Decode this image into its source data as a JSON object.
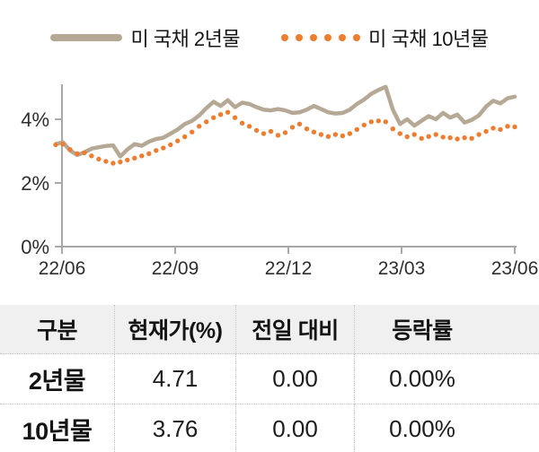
{
  "legend": {
    "items": [
      {
        "label": "미 국채 2년물",
        "swatch": "solid-line",
        "color": "#b5a894"
      },
      {
        "label": "미 국채 10년물",
        "swatch": "dotted-line",
        "color": "#ed7d31"
      }
    ]
  },
  "chart_data": {
    "type": "line",
    "title": "",
    "xlabel": "",
    "ylabel": "",
    "grid": false,
    "legend_position": "top-center",
    "ylim": [
      0,
      5.2
    ],
    "y_ticks": [
      "0%",
      "2%",
      "4%"
    ],
    "x_ticks": [
      "22/06",
      "22/09",
      "22/12",
      "23/03",
      "23/06"
    ],
    "series": [
      {
        "name": "미 국채 2년물",
        "style": "solid",
        "color": "#b5a894",
        "values": [
          3.22,
          3.28,
          3.02,
          2.88,
          2.96,
          3.08,
          3.12,
          3.16,
          3.18,
          2.83,
          3.05,
          3.22,
          3.17,
          3.3,
          3.38,
          3.42,
          3.55,
          3.68,
          3.85,
          3.95,
          4.12,
          4.35,
          4.55,
          4.42,
          4.6,
          4.38,
          4.52,
          4.48,
          4.38,
          4.3,
          4.28,
          4.32,
          4.28,
          4.2,
          4.22,
          4.3,
          4.42,
          4.32,
          4.22,
          4.18,
          4.2,
          4.3,
          4.48,
          4.62,
          4.8,
          4.92,
          5.02,
          4.3,
          3.85,
          4.0,
          3.8,
          3.95,
          4.1,
          4.0,
          4.2,
          4.05,
          4.15,
          3.9,
          3.98,
          4.12,
          4.4,
          4.58,
          4.5,
          4.66,
          4.71
        ]
      },
      {
        "name": "미 국채 10년물",
        "style": "dotted",
        "color": "#ed7d31",
        "values": [
          3.2,
          3.22,
          3.05,
          2.92,
          2.95,
          2.85,
          2.75,
          2.68,
          2.62,
          2.66,
          2.72,
          2.78,
          2.85,
          2.92,
          3.02,
          3.1,
          3.2,
          3.32,
          3.45,
          3.6,
          3.78,
          3.92,
          4.05,
          4.15,
          4.22,
          4.05,
          3.88,
          3.78,
          3.65,
          3.55,
          3.62,
          3.5,
          3.58,
          3.75,
          3.85,
          3.7,
          3.6,
          3.52,
          3.46,
          3.52,
          3.48,
          3.55,
          3.68,
          3.82,
          3.92,
          3.95,
          3.92,
          3.7,
          3.55,
          3.45,
          3.52,
          3.4,
          3.46,
          3.52,
          3.44,
          3.42,
          3.38,
          3.42,
          3.4,
          3.52,
          3.62,
          3.72,
          3.68,
          3.78,
          3.76
        ]
      }
    ]
  },
  "table": {
    "headers": [
      "구분",
      "현재가(%)",
      "전일 대비",
      "등락률"
    ],
    "rows": [
      {
        "label": "2년물",
        "current": "4.71",
        "change": "0.00",
        "change_pct": "0.00%"
      },
      {
        "label": "10년물",
        "current": "3.76",
        "change": "0.00",
        "change_pct": "0.00%"
      }
    ]
  },
  "colors": {
    "series_2y": "#b5a894",
    "series_10y": "#ed7d31",
    "axis": "#a8a8a8",
    "table_header_bg": "#f0f0f0",
    "divider": "#c4c4c4",
    "text": "#1a1a1a"
  }
}
